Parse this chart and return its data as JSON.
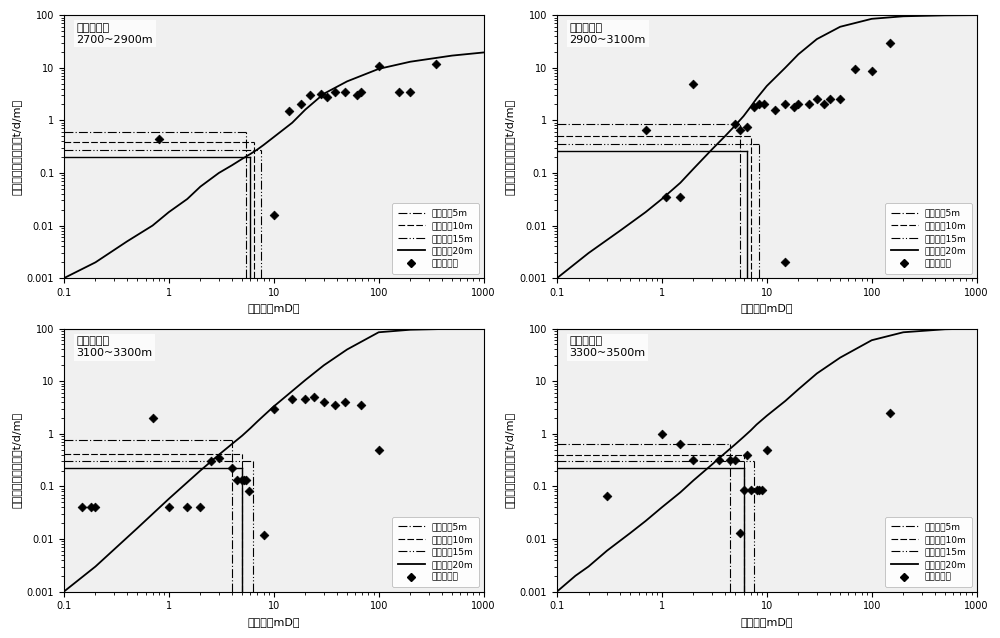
{
  "subplots": [
    {
      "title": "深度区间：\n2700~2900m",
      "xlim": [
        0.1,
        1000
      ],
      "ylim": [
        0.001,
        100
      ],
      "curve_x": [
        0.1,
        0.2,
        0.4,
        0.7,
        1,
        1.5,
        2,
        3,
        4,
        5,
        6,
        7,
        8,
        10,
        15,
        20,
        30,
        50,
        100,
        200,
        500,
        1000
      ],
      "curve_y": [
        0.001,
        0.002,
        0.005,
        0.01,
        0.018,
        0.032,
        0.055,
        0.1,
        0.14,
        0.185,
        0.23,
        0.28,
        0.34,
        0.48,
        0.9,
        1.6,
        3.2,
        5.5,
        9.5,
        13.0,
        17.0,
        19.5
      ],
      "hlines": [
        0.6,
        0.38,
        0.27,
        0.2
      ],
      "vlines": [
        5.5,
        6.5,
        7.5,
        6.0
      ],
      "scatter_x": [
        0.8,
        10,
        14,
        18,
        22,
        28,
        32,
        38,
        48,
        62,
        68,
        100,
        155,
        200,
        350
      ],
      "scatter_y": [
        0.45,
        0.016,
        1.5,
        2.0,
        3.0,
        3.2,
        2.8,
        3.5,
        3.5,
        3.0,
        3.5,
        11.0,
        3.5,
        3.5,
        12.0
      ]
    },
    {
      "title": "深度区间：\n2900~3100m",
      "xlim": [
        0.1,
        1000
      ],
      "ylim": [
        0.001,
        100
      ],
      "curve_x": [
        0.1,
        0.2,
        0.4,
        0.7,
        1,
        1.5,
        2,
        3,
        4,
        5,
        6,
        7,
        8,
        10,
        15,
        20,
        30,
        50,
        100,
        200,
        500,
        1000
      ],
      "curve_y": [
        0.001,
        0.003,
        0.008,
        0.018,
        0.032,
        0.065,
        0.12,
        0.28,
        0.5,
        0.8,
        1.2,
        1.8,
        2.6,
        4.5,
        10.0,
        18.0,
        35.0,
        60.0,
        85.0,
        95.0,
        99.0,
        100.0
      ],
      "hlines": [
        0.85,
        0.5,
        0.35,
        0.26
      ],
      "vlines": [
        5.5,
        7.0,
        8.5,
        6.5
      ],
      "scatter_x": [
        0.7,
        1.1,
        1.5,
        2.0,
        5.0,
        5.5,
        6.5,
        7.5,
        8.5,
        9.5,
        12,
        15,
        18,
        20,
        25,
        30,
        35,
        40,
        50,
        70,
        100,
        150,
        15
      ],
      "scatter_y": [
        0.65,
        0.035,
        0.035,
        5.0,
        0.85,
        0.65,
        0.75,
        1.8,
        2.0,
        2.0,
        1.6,
        2.0,
        1.8,
        2.0,
        2.0,
        2.5,
        2.0,
        2.5,
        2.5,
        9.5,
        8.5,
        30.0,
        0.002
      ]
    },
    {
      "title": "深度区间：\n3100~3300m",
      "xlim": [
        0.1,
        1000
      ],
      "ylim": [
        0.001,
        100
      ],
      "curve_x": [
        0.1,
        0.2,
        0.5,
        1,
        2,
        3,
        4,
        5,
        6,
        7,
        8,
        10,
        15,
        20,
        30,
        50,
        100,
        200,
        500,
        1000
      ],
      "curve_y": [
        0.001,
        0.003,
        0.016,
        0.058,
        0.2,
        0.4,
        0.64,
        0.92,
        1.28,
        1.72,
        2.2,
        3.3,
        6.5,
        10.5,
        20.0,
        40.0,
        85.0,
        95.0,
        99.0,
        100.0
      ],
      "hlines": [
        0.75,
        0.42,
        0.3,
        0.22
      ],
      "vlines": [
        4.0,
        5.0,
        6.3,
        5.0
      ],
      "scatter_x": [
        0.15,
        0.2,
        0.18,
        0.7,
        1.0,
        1.5,
        2.0,
        2.5,
        3.0,
        4.0,
        5.0,
        5.5,
        5.8,
        4.5,
        5.2,
        10,
        15,
        20,
        24,
        30,
        38,
        48,
        68,
        100,
        8.0
      ],
      "scatter_y": [
        0.04,
        0.04,
        0.04,
        2.0,
        0.04,
        0.04,
        0.04,
        0.3,
        0.35,
        0.22,
        0.13,
        0.13,
        0.08,
        0.13,
        0.13,
        3.0,
        4.5,
        4.5,
        5.0,
        4.0,
        3.5,
        4.0,
        3.5,
        0.5,
        0.012
      ]
    },
    {
      "title": "深度区间：\n3300~3500m",
      "xlim": [
        0.1,
        1000
      ],
      "ylim": [
        0.001,
        100
      ],
      "curve_x": [
        0.1,
        0.15,
        0.2,
        0.3,
        0.5,
        0.7,
        1,
        1.5,
        2,
        3,
        4,
        5,
        6,
        7,
        8,
        10,
        15,
        20,
        30,
        50,
        100,
        200,
        500,
        1000
      ],
      "curve_y": [
        0.001,
        0.002,
        0.003,
        0.006,
        0.013,
        0.022,
        0.04,
        0.077,
        0.13,
        0.26,
        0.43,
        0.63,
        0.87,
        1.15,
        1.5,
        2.2,
        4.2,
        7.0,
        14.0,
        28.0,
        60.0,
        85.0,
        97.0,
        100.0
      ],
      "hlines": [
        0.65,
        0.4,
        0.3,
        0.22
      ],
      "vlines": [
        4.5,
        6.0,
        7.5,
        6.0
      ],
      "scatter_x": [
        0.3,
        1.0,
        1.5,
        2.0,
        3.5,
        4.5,
        5.0,
        5.5,
        6.0,
        6.5,
        7.0,
        8.0,
        8.5,
        9.0,
        10,
        150
      ],
      "scatter_y": [
        0.065,
        1.0,
        0.65,
        0.32,
        0.32,
        0.32,
        0.32,
        0.013,
        0.085,
        0.4,
        0.085,
        0.085,
        0.085,
        0.085,
        0.5,
        2.5
      ]
    }
  ],
  "legend_labels": [
    "开发厚度5m",
    "开发厚度10m",
    "开发厚度15m",
    "开发厚度20m",
    "实测渗透率"
  ],
  "xlabel": "渗透率（mD）",
  "ylabel": "单位厚度日产液量（t/d/m）",
  "scatter_color": "black",
  "scatter_marker": "D",
  "scatter_size": 20,
  "fig_bg": "white",
  "font_size": 8,
  "title_font_size": 8
}
